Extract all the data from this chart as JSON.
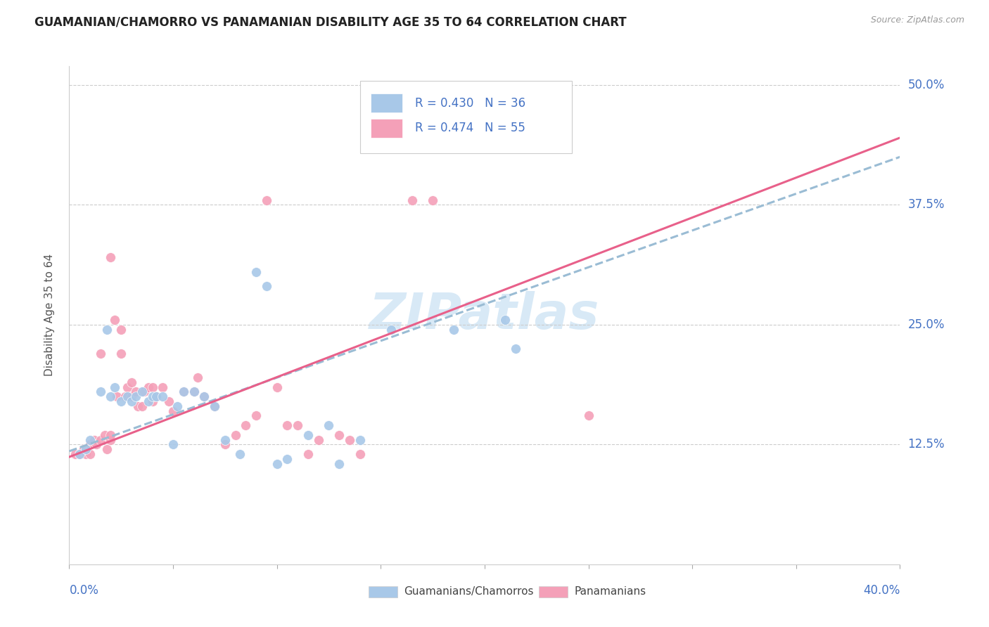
{
  "title": "GUAMANIAN/CHAMORRO VS PANAMANIAN DISABILITY AGE 35 TO 64 CORRELATION CHART",
  "source": "Source: ZipAtlas.com",
  "ylabel": "Disability Age 35 to 64",
  "yticks": [
    "12.5%",
    "25.0%",
    "37.5%",
    "50.0%"
  ],
  "ytick_vals": [
    0.125,
    0.25,
    0.375,
    0.5
  ],
  "xlim": [
    0.0,
    0.4
  ],
  "ylim": [
    0.0,
    0.52
  ],
  "legend_label1": "R = 0.430   N = 36",
  "legend_label2": "R = 0.474   N = 55",
  "legend_label3": "Guamanians/Chamorros",
  "legend_label4": "Panamanians",
  "color_blue": "#a8c8e8",
  "color_pink": "#f4a0b8",
  "watermark": "ZIPatlas",
  "blue_scatter": [
    [
      0.005,
      0.115
    ],
    [
      0.008,
      0.12
    ],
    [
      0.01,
      0.13
    ],
    [
      0.015,
      0.18
    ],
    [
      0.018,
      0.245
    ],
    [
      0.02,
      0.175
    ],
    [
      0.022,
      0.185
    ],
    [
      0.025,
      0.17
    ],
    [
      0.028,
      0.175
    ],
    [
      0.03,
      0.17
    ],
    [
      0.032,
      0.175
    ],
    [
      0.035,
      0.18
    ],
    [
      0.038,
      0.17
    ],
    [
      0.04,
      0.175
    ],
    [
      0.042,
      0.175
    ],
    [
      0.045,
      0.175
    ],
    [
      0.05,
      0.125
    ],
    [
      0.052,
      0.165
    ],
    [
      0.055,
      0.18
    ],
    [
      0.06,
      0.18
    ],
    [
      0.065,
      0.175
    ],
    [
      0.07,
      0.165
    ],
    [
      0.075,
      0.13
    ],
    [
      0.082,
      0.115
    ],
    [
      0.09,
      0.305
    ],
    [
      0.095,
      0.29
    ],
    [
      0.1,
      0.105
    ],
    [
      0.105,
      0.11
    ],
    [
      0.115,
      0.135
    ],
    [
      0.125,
      0.145
    ],
    [
      0.13,
      0.105
    ],
    [
      0.14,
      0.13
    ],
    [
      0.155,
      0.245
    ],
    [
      0.185,
      0.245
    ],
    [
      0.21,
      0.255
    ],
    [
      0.215,
      0.225
    ]
  ],
  "pink_scatter": [
    [
      0.003,
      0.115
    ],
    [
      0.005,
      0.115
    ],
    [
      0.007,
      0.12
    ],
    [
      0.008,
      0.115
    ],
    [
      0.01,
      0.115
    ],
    [
      0.01,
      0.125
    ],
    [
      0.012,
      0.13
    ],
    [
      0.013,
      0.125
    ],
    [
      0.015,
      0.13
    ],
    [
      0.015,
      0.22
    ],
    [
      0.017,
      0.135
    ],
    [
      0.018,
      0.12
    ],
    [
      0.02,
      0.13
    ],
    [
      0.02,
      0.135
    ],
    [
      0.02,
      0.32
    ],
    [
      0.022,
      0.255
    ],
    [
      0.023,
      0.175
    ],
    [
      0.025,
      0.22
    ],
    [
      0.025,
      0.245
    ],
    [
      0.027,
      0.175
    ],
    [
      0.028,
      0.185
    ],
    [
      0.03,
      0.175
    ],
    [
      0.03,
      0.19
    ],
    [
      0.032,
      0.18
    ],
    [
      0.033,
      0.165
    ],
    [
      0.035,
      0.165
    ],
    [
      0.036,
      0.18
    ],
    [
      0.038,
      0.185
    ],
    [
      0.04,
      0.17
    ],
    [
      0.04,
      0.185
    ],
    [
      0.042,
      0.175
    ],
    [
      0.045,
      0.185
    ],
    [
      0.048,
      0.17
    ],
    [
      0.05,
      0.16
    ],
    [
      0.055,
      0.18
    ],
    [
      0.06,
      0.18
    ],
    [
      0.062,
      0.195
    ],
    [
      0.065,
      0.175
    ],
    [
      0.07,
      0.165
    ],
    [
      0.075,
      0.125
    ],
    [
      0.08,
      0.135
    ],
    [
      0.085,
      0.145
    ],
    [
      0.09,
      0.155
    ],
    [
      0.095,
      0.38
    ],
    [
      0.1,
      0.185
    ],
    [
      0.105,
      0.145
    ],
    [
      0.11,
      0.145
    ],
    [
      0.115,
      0.115
    ],
    [
      0.12,
      0.13
    ],
    [
      0.13,
      0.135
    ],
    [
      0.135,
      0.13
    ],
    [
      0.14,
      0.115
    ],
    [
      0.165,
      0.38
    ],
    [
      0.175,
      0.38
    ],
    [
      0.25,
      0.155
    ]
  ],
  "blue_line": [
    [
      0.0,
      0.118
    ],
    [
      0.4,
      0.425
    ]
  ],
  "pink_line": [
    [
      0.0,
      0.112
    ],
    [
      0.4,
      0.445
    ]
  ]
}
